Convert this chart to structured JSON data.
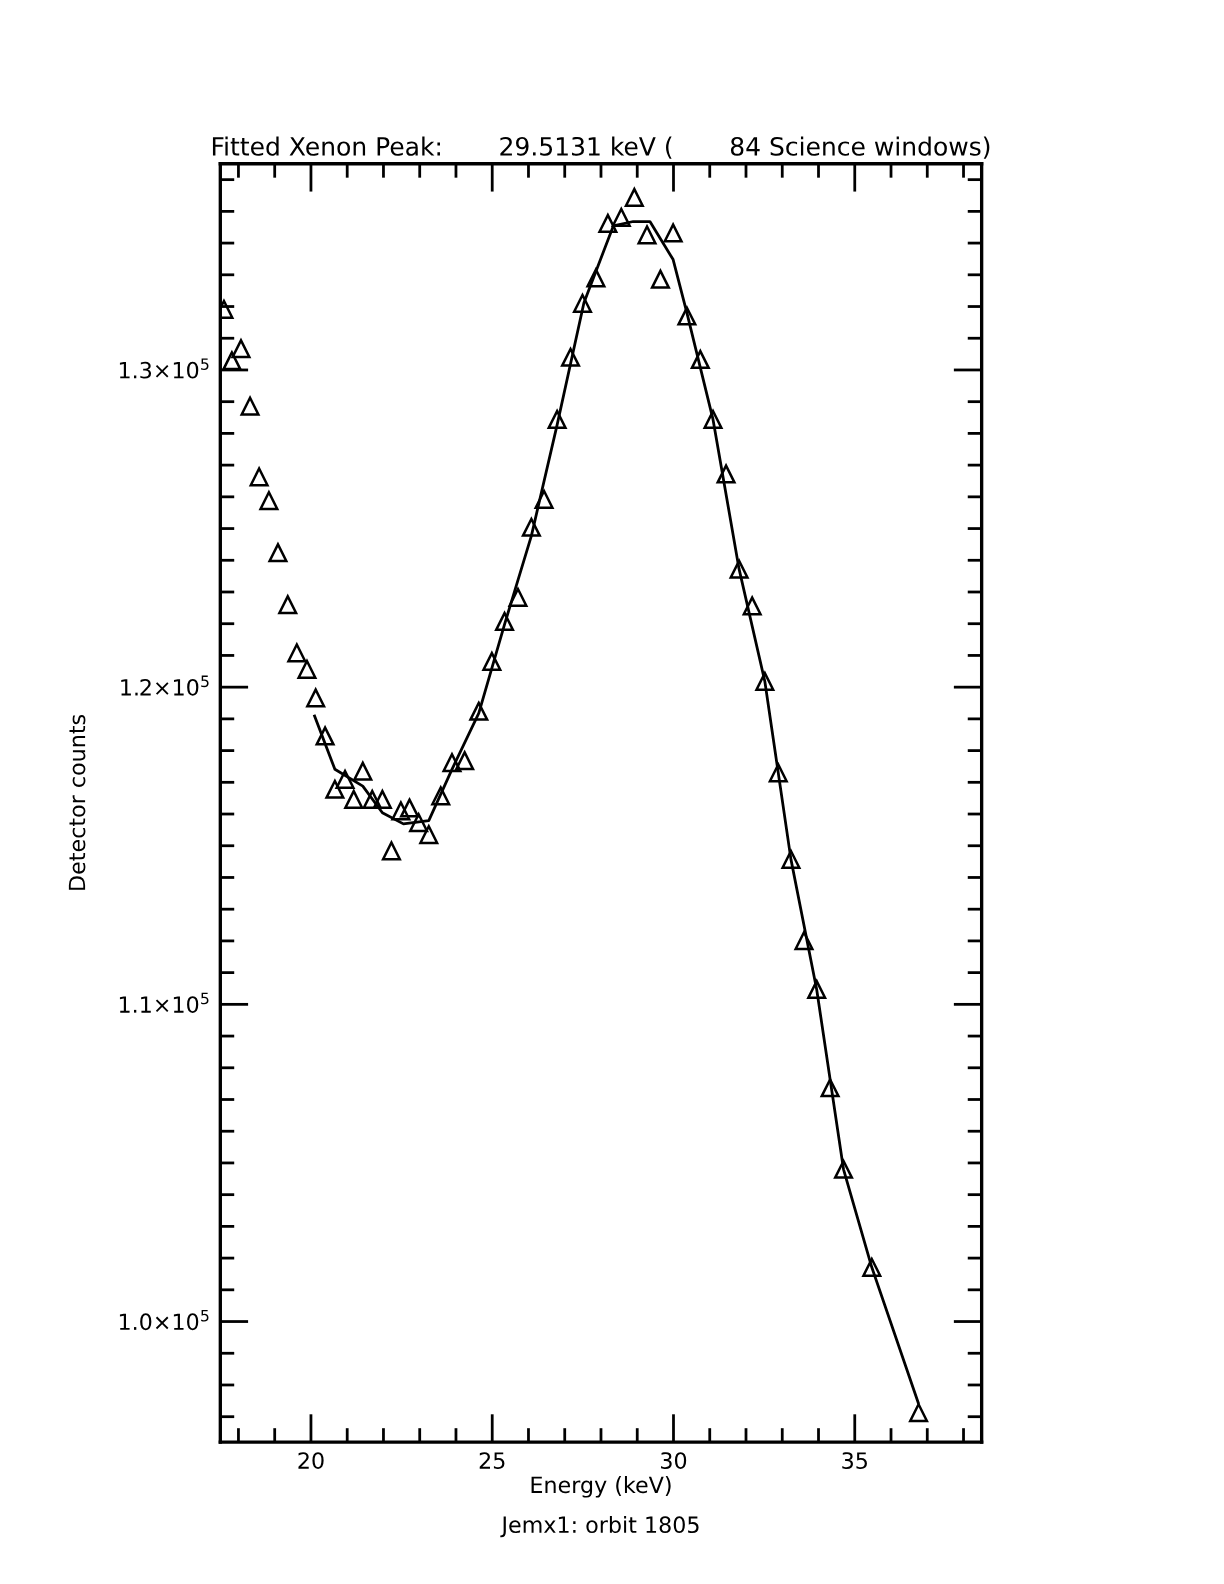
{
  "chart_data": {
    "type": "scatter",
    "title": "Fitted Xenon Peak:       29.5131 keV (       84 Science windows)",
    "xlabel": "Energy (keV)",
    "ylabel": "Detector counts",
    "annotations": [
      "Jemx1: orbit 1805"
    ],
    "xlim": [
      17.5,
      38.5
    ],
    "ylim": [
      96200,
      136500
    ],
    "xticks": [
      {
        "value": 18,
        "label": null
      },
      {
        "value": 19,
        "label": null
      },
      20,
      {
        "value": 21,
        "label": null
      },
      {
        "value": 22,
        "label": null
      },
      {
        "value": 23,
        "label": null
      },
      {
        "value": 24,
        "label": null
      },
      25,
      {
        "value": 26,
        "label": null
      },
      {
        "value": 27,
        "label": null
      },
      {
        "value": 28,
        "label": null
      },
      {
        "value": 29,
        "label": null
      },
      30,
      {
        "value": 31,
        "label": null
      },
      {
        "value": 32,
        "label": null
      },
      {
        "value": 33,
        "label": null
      },
      {
        "value": 34,
        "label": null
      },
      35,
      {
        "value": 36,
        "label": null
      },
      {
        "value": 37,
        "label": null
      },
      {
        "value": 38,
        "label": null
      }
    ],
    "yticks": [
      {
        "value": 97000,
        "label": null
      },
      {
        "value": 98000,
        "label": null
      },
      {
        "value": 99000,
        "label": null
      },
      {
        "value": 100000,
        "label": "1.0×10$^{5}$"
      },
      {
        "value": 101000,
        "label": null
      },
      {
        "value": 102000,
        "label": null
      },
      {
        "value": 103000,
        "label": null
      },
      {
        "value": 104000,
        "label": null
      },
      {
        "value": 105000,
        "label": null
      },
      {
        "value": 106000,
        "label": null
      },
      {
        "value": 107000,
        "label": null
      },
      {
        "value": 108000,
        "label": null
      },
      {
        "value": 109000,
        "label": null
      },
      {
        "value": 110000,
        "label": "1.1×10$^{5}$"
      },
      {
        "value": 111000,
        "label": null
      },
      {
        "value": 112000,
        "label": null
      },
      {
        "value": 113000,
        "label": null
      },
      {
        "value": 114000,
        "label": null
      },
      {
        "value": 115000,
        "label": null
      },
      {
        "value": 116000,
        "label": null
      },
      {
        "value": 117000,
        "label": null
      },
      {
        "value": 118000,
        "label": null
      },
      {
        "value": 119000,
        "label": null
      },
      {
        "value": 120000,
        "label": "1.2×10$^{5}$"
      },
      {
        "value": 121000,
        "label": null
      },
      {
        "value": 122000,
        "label": null
      },
      {
        "value": 123000,
        "label": null
      },
      {
        "value": 124000,
        "label": null
      },
      {
        "value": 125000,
        "label": null
      },
      {
        "value": 126000,
        "label": null
      },
      {
        "value": 127000,
        "label": null
      },
      {
        "value": 128000,
        "label": null
      },
      {
        "value": 129000,
        "label": null
      },
      {
        "value": 130000,
        "label": "1.3×10$^{5}$"
      },
      {
        "value": 131000,
        "label": null
      },
      {
        "value": 132000,
        "label": null
      },
      {
        "value": 133000,
        "label": null
      },
      {
        "value": 134000,
        "label": null
      },
      {
        "value": 135000,
        "label": null
      },
      {
        "value": 136000,
        "label": null
      }
    ],
    "grid": false,
    "series": [
      {
        "marker": "triangle",
        "color": "#000000",
        "x": [
          17.6,
          17.82,
          18.07,
          18.32,
          18.57,
          18.84,
          19.09,
          19.36,
          19.61,
          19.89,
          20.13,
          20.39,
          20.66,
          20.94,
          21.18,
          21.43,
          21.69,
          21.97,
          22.22,
          22.48,
          22.72,
          22.97,
          23.25,
          23.58,
          23.89,
          24.24,
          24.63,
          24.99,
          25.34,
          25.71,
          26.08,
          26.43,
          26.79,
          27.16,
          27.49,
          27.86,
          28.19,
          28.56,
          28.92,
          29.27,
          29.64,
          29.99,
          30.37,
          30.74,
          31.09,
          31.45,
          31.81,
          32.17,
          32.52,
          32.89,
          33.24,
          33.6,
          33.95,
          34.32,
          34.69,
          35.47,
          36.76
        ],
        "values": [
          131910,
          130290,
          130670,
          128860,
          126630,
          125880,
          124240,
          122600,
          121080,
          120560,
          119660,
          118460,
          116780,
          117090,
          116460,
          117350,
          116460,
          116460,
          114840,
          116100,
          116190,
          115730,
          115350,
          116570,
          117620,
          117680,
          119240,
          120810,
          122070,
          122830,
          125040,
          125920,
          128440,
          130400,
          132100,
          132900,
          134620,
          134810,
          135440,
          134260,
          132860,
          134320,
          131700,
          130330,
          128440,
          126720,
          123720,
          122560,
          120180,
          117300,
          114570,
          112010,
          110470,
          107370,
          104800,
          101710,
          97130
        ]
      },
      {
        "type": "line",
        "marker": "none",
        "line_style": "solid",
        "color": "#000000",
        "x": [
          20.1,
          20.66,
          21.43,
          21.97,
          22.55,
          23.25,
          23.89,
          24.63,
          25.34,
          26.08,
          26.79,
          27.53,
          28.34,
          28.89,
          29.35,
          29.99,
          30.37,
          31.09,
          31.81,
          32.52,
          33.24,
          33.95,
          34.69,
          35.47,
          36.75
        ],
        "values": [
          119090,
          117410,
          116880,
          116040,
          115690,
          115790,
          117410,
          119180,
          121980,
          124770,
          128270,
          132120,
          134540,
          134680,
          134680,
          133480,
          131800,
          128440,
          123720,
          120180,
          114570,
          110470,
          104800,
          101710,
          97440
        ]
      }
    ]
  }
}
